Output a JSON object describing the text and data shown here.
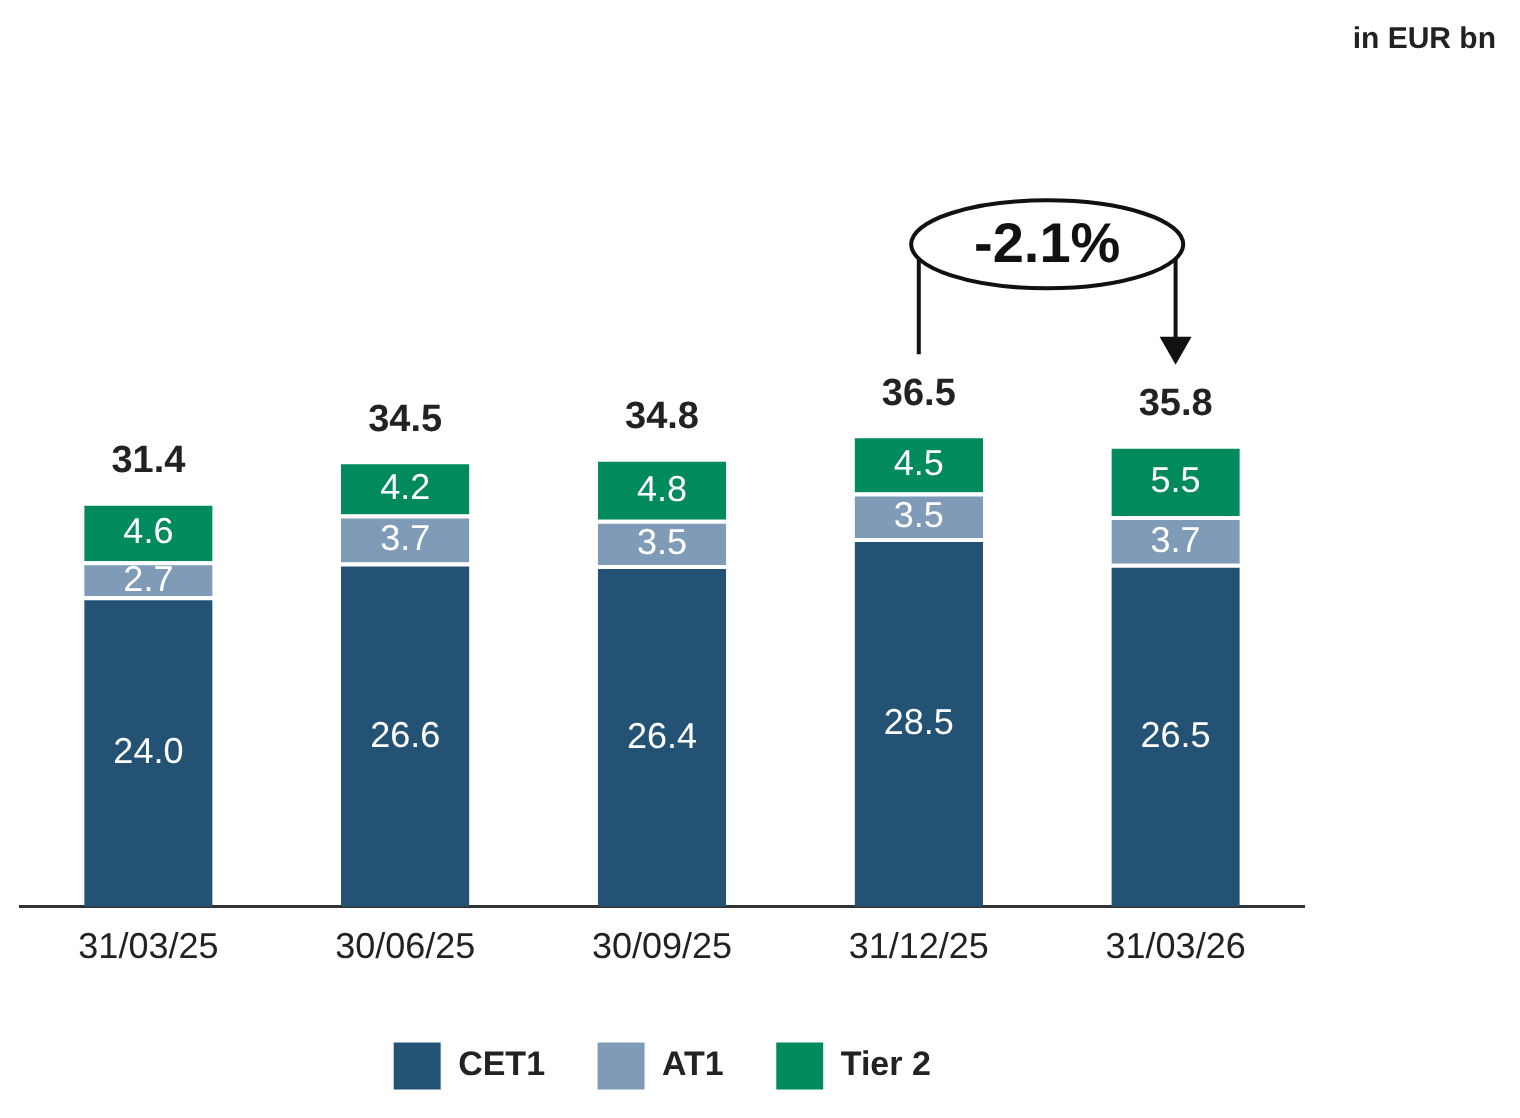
{
  "chart_data": {
    "type": "bar",
    "stacked": true,
    "categories": [
      "31/03/25",
      "30/06/25",
      "30/09/25",
      "31/12/25",
      "31/03/26"
    ],
    "series": [
      {
        "name": "CET1",
        "color": "#245274",
        "values": [
          24.0,
          26.6,
          26.4,
          28.5,
          26.5
        ],
        "value_labels": [
          "24.0",
          "26.6",
          "26.4",
          "28.5",
          "26.5"
        ]
      },
      {
        "name": "AT1",
        "color": "#7f9bb8",
        "values": [
          2.7,
          3.7,
          3.5,
          3.5,
          3.7
        ],
        "value_labels": [
          "2.7",
          "3.7",
          "3.5",
          "3.5",
          "3.7"
        ]
      },
      {
        "name": "Tier 2",
        "color": "#008a5e",
        "values": [
          4.6,
          4.2,
          4.8,
          4.5,
          5.5
        ],
        "value_labels": [
          "4.6",
          "4.2",
          "4.8",
          "4.5",
          "5.5"
        ]
      }
    ],
    "totals": [
      "31.4",
      "34.5",
      "34.8",
      "36.5",
      "35.8"
    ],
    "annotations": [
      "in EUR bn",
      "-2.1%"
    ],
    "legend": "bottom",
    "grid": false
  }
}
